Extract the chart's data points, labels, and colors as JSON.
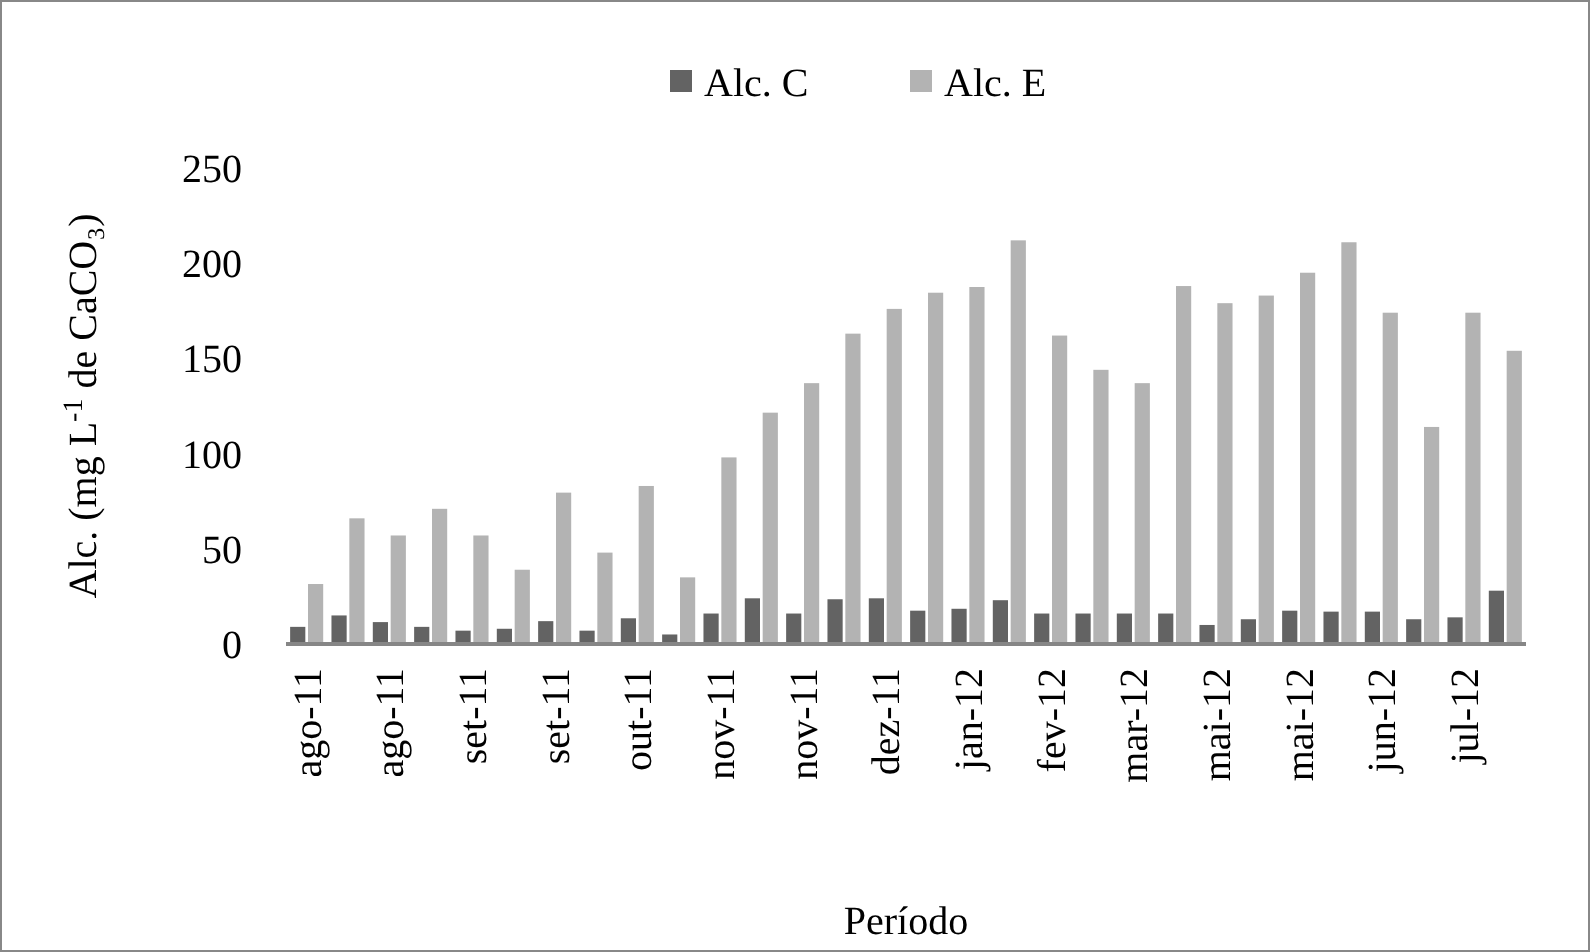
{
  "chart_data": {
    "type": "bar",
    "xlabel": "Período",
    "ylabel": "Alc. (mg L$^{-1}$ de CaCO₃)",
    "categories": [
      "ago-11",
      null,
      "ago-11",
      null,
      "set-11",
      null,
      "set-11",
      null,
      "out-11",
      null,
      "nov-11",
      null,
      "nov-11",
      null,
      "dez-11",
      null,
      "jan-12",
      null,
      "fev-12",
      null,
      "mar-12",
      null,
      "mai-12",
      null,
      "mai-12",
      null,
      "jun-12",
      null,
      "jul-12",
      null
    ],
    "series": [
      {
        "name": "Alc. C",
        "color": "#636363",
        "values": [
          9,
          15,
          11.5,
          9,
          7,
          8,
          12,
          7,
          13.5,
          5,
          16,
          24,
          16,
          23.5,
          24,
          17.5,
          18.5,
          23,
          16,
          16,
          16,
          16,
          10,
          13,
          17.5,
          17,
          17,
          13,
          14,
          28
        ]
      },
      {
        "name": "Alc. E",
        "color": "#b3b3b3",
        "values": [
          31.5,
          66,
          57,
          71,
          57,
          39,
          79.5,
          48,
          83,
          35,
          98,
          121.5,
          137,
          163,
          176,
          184.5,
          187.5,
          212,
          162,
          144,
          137,
          188,
          179,
          183,
          195,
          211,
          174,
          114,
          174,
          154
        ]
      }
    ],
    "ylim": [
      0,
      250
    ],
    "yticks": [
      0,
      50,
      100,
      150,
      200,
      250
    ],
    "grid": false,
    "legend": "top"
  }
}
